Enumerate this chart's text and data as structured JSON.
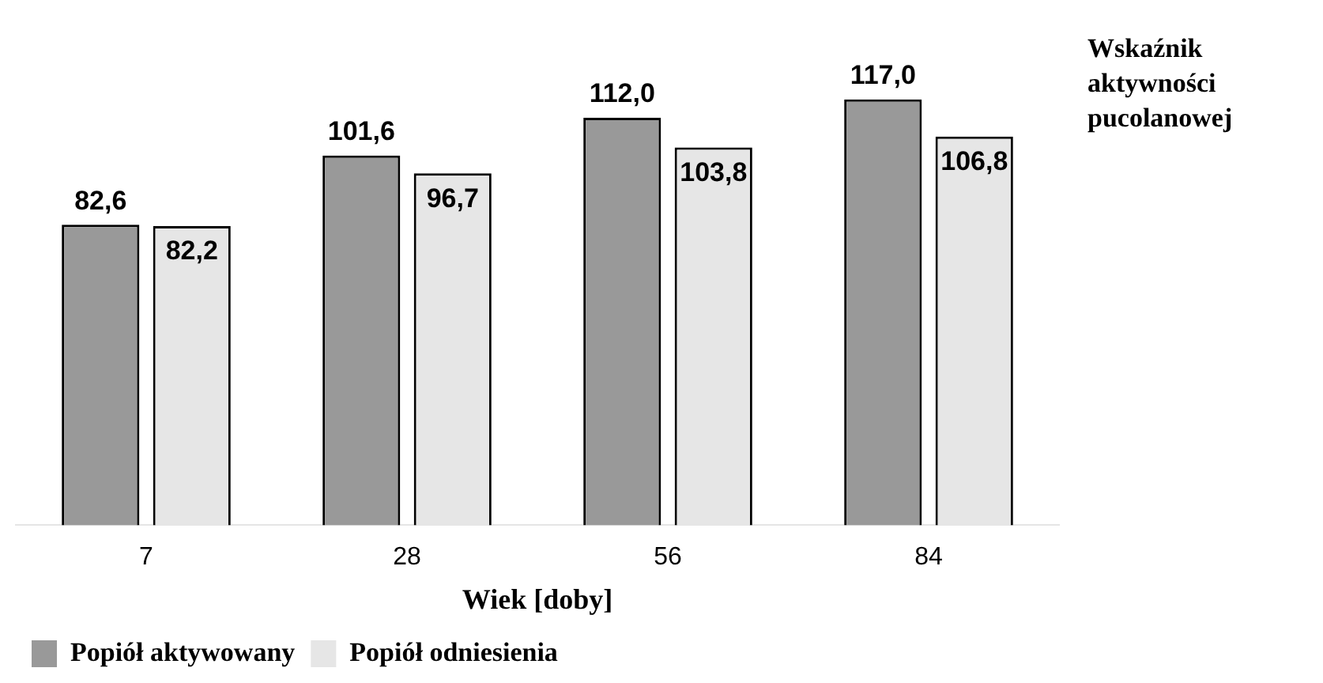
{
  "chart_data": {
    "type": "bar",
    "xlabel": "Wiek [doby]",
    "ylabel": "Wskaźnik aktywności pucolanowej",
    "categories": [
      "7",
      "28",
      "56",
      "84"
    ],
    "series": [
      {
        "name": "Popiół aktywowany",
        "color": "#999999",
        "values": [
          82.6,
          101.6,
          112.0,
          117.0
        ],
        "value_labels": [
          "82,6",
          "101,6",
          "112,0",
          "117,0"
        ]
      },
      {
        "name": "Popiół odniesienia",
        "color": "#e6e6e6",
        "values": [
          82.2,
          96.7,
          103.8,
          106.8
        ],
        "value_labels": [
          "82,2",
          "96,7",
          "103,8",
          "106,8"
        ]
      }
    ],
    "legend": "bottom left",
    "tick_labels": "x"
  }
}
